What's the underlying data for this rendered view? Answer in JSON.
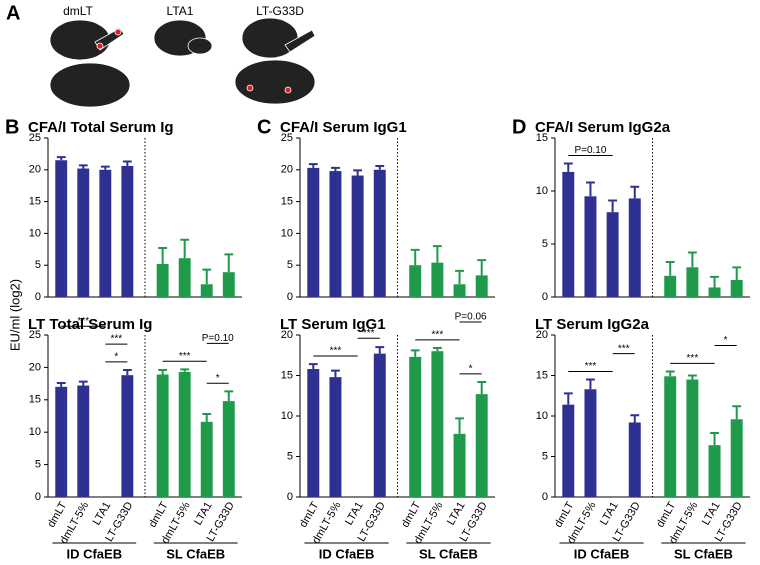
{
  "panel_a": {
    "letter": "A",
    "labels": [
      "dmLT",
      "LTA1",
      "LT-G33D"
    ]
  },
  "y_label": "EU/ml (log2)",
  "chart_data": [
    {
      "type": "bar",
      "panel": "B",
      "title": "CFA/I Total Serum Ig",
      "ylim": [
        0,
        25
      ],
      "yticks": [
        0,
        5,
        10,
        15,
        20,
        25
      ],
      "values": [
        21.5,
        20.2,
        20.0,
        20.6,
        5.2,
        6.1,
        2.0,
        3.9
      ],
      "errors": [
        0.5,
        0.5,
        0.5,
        0.7,
        2.5,
        2.9,
        2.3,
        2.8
      ],
      "colors": [
        "#2e3192",
        "#1e9a4a"
      ],
      "annotations": []
    },
    {
      "type": "bar",
      "title": "LT Total Serum Ig",
      "ylim": [
        0,
        25
      ],
      "yticks": [
        0,
        5,
        10,
        15,
        20,
        25
      ],
      "categories": [
        "dmLT",
        "dmLT-5%",
        "LTA1",
        "LT-G33D",
        "dmLT",
        "dmLT-5%",
        "LTA1",
        "LT-G33D"
      ],
      "groups": [
        "ID CfaEB",
        "SL CfaEB"
      ],
      "values": [
        17.0,
        17.2,
        null,
        18.8,
        18.9,
        19.3,
        11.6,
        14.8
      ],
      "errors": [
        0.6,
        0.6,
        null,
        0.8,
        0.7,
        0.4,
        1.2,
        1.5
      ],
      "colors": [
        "#2e3192",
        "#1e9a4a"
      ],
      "annotations": [
        {
          "text": "*",
          "from": 2,
          "to": 3
        },
        {
          "text": "***",
          "from": 2,
          "to": 3
        },
        {
          "text": "***",
          "from": 0,
          "to": 2
        },
        {
          "text": "*",
          "from": 6,
          "to": 7
        },
        {
          "text": "***",
          "from": 4,
          "to": 6
        },
        {
          "text": "P=0.10",
          "from": 6,
          "to": 7
        }
      ]
    },
    {
      "type": "bar",
      "panel": "C",
      "title": "CFA/I Serum IgG1",
      "ylim": [
        0,
        25
      ],
      "yticks": [
        0,
        5,
        10,
        15,
        20,
        25
      ],
      "values": [
        20.3,
        19.8,
        19.1,
        20.0,
        5.0,
        5.4,
        2.0,
        3.4
      ],
      "errors": [
        0.6,
        0.5,
        0.8,
        0.6,
        2.4,
        2.6,
        2.1,
        2.4
      ],
      "colors": [
        "#2e3192",
        "#1e9a4a"
      ],
      "annotations": []
    },
    {
      "type": "bar",
      "title": "LT Serum IgG1",
      "ylim": [
        0,
        20
      ],
      "yticks": [
        0,
        5,
        10,
        15,
        20
      ],
      "categories": [
        "dmLT",
        "dmLT-5%",
        "LTA1",
        "LT-G33D",
        "dmLT",
        "dmLT-5%",
        "LTA1",
        "LT-G33D"
      ],
      "groups": [
        "ID CfaEB",
        "SL CfaEB"
      ],
      "values": [
        15.8,
        14.8,
        null,
        17.7,
        17.3,
        18.0,
        7.8,
        12.7
      ],
      "errors": [
        0.6,
        0.8,
        null,
        0.8,
        0.8,
        0.4,
        1.9,
        1.5
      ],
      "colors": [
        "#2e3192",
        "#1e9a4a"
      ],
      "annotations": [
        {
          "text": "***",
          "from": 0,
          "to": 2
        },
        {
          "text": "***",
          "from": 2,
          "to": 3
        },
        {
          "text": "*",
          "from": 6,
          "to": 7
        },
        {
          "text": "***",
          "from": 4,
          "to": 6
        },
        {
          "text": "P=0.06",
          "from": 6,
          "to": 7
        }
      ]
    },
    {
      "type": "bar",
      "panel": "D",
      "title": "CFA/I Serum IgG2a",
      "ylim": [
        0,
        15
      ],
      "yticks": [
        0,
        5,
        10,
        15
      ],
      "values": [
        11.8,
        9.5,
        8.0,
        9.3,
        2.0,
        2.8,
        0.9,
        1.6
      ],
      "errors": [
        0.8,
        1.3,
        1.1,
        1.1,
        1.3,
        1.4,
        1.0,
        1.2
      ],
      "colors": [
        "#2e3192",
        "#1e9a4a"
      ],
      "annotations": [
        {
          "text": "P=0.10",
          "from": 0,
          "to": 2
        }
      ]
    },
    {
      "type": "bar",
      "title": "LT Serum IgG2a",
      "ylim": [
        0,
        20
      ],
      "yticks": [
        0,
        5,
        10,
        15,
        20
      ],
      "categories": [
        "dmLT",
        "dmLT-5%",
        "LTA1",
        "LT-G33D",
        "dmLT",
        "dmLT-5%",
        "LTA1",
        "LT-G33D"
      ],
      "groups": [
        "ID CfaEB",
        "SL CfaEB"
      ],
      "values": [
        11.4,
        13.3,
        null,
        9.2,
        14.9,
        14.5,
        6.4,
        9.6
      ],
      "errors": [
        1.4,
        1.2,
        null,
        0.9,
        0.6,
        0.5,
        1.5,
        1.6
      ],
      "colors": [
        "#2e3192",
        "#1e9a4a"
      ],
      "annotations": [
        {
          "text": "***",
          "from": 0,
          "to": 2
        },
        {
          "text": "***",
          "from": 2,
          "to": 3
        },
        {
          "text": "***",
          "from": 4,
          "to": 6
        },
        {
          "text": "*",
          "from": 6,
          "to": 7
        }
      ]
    }
  ]
}
